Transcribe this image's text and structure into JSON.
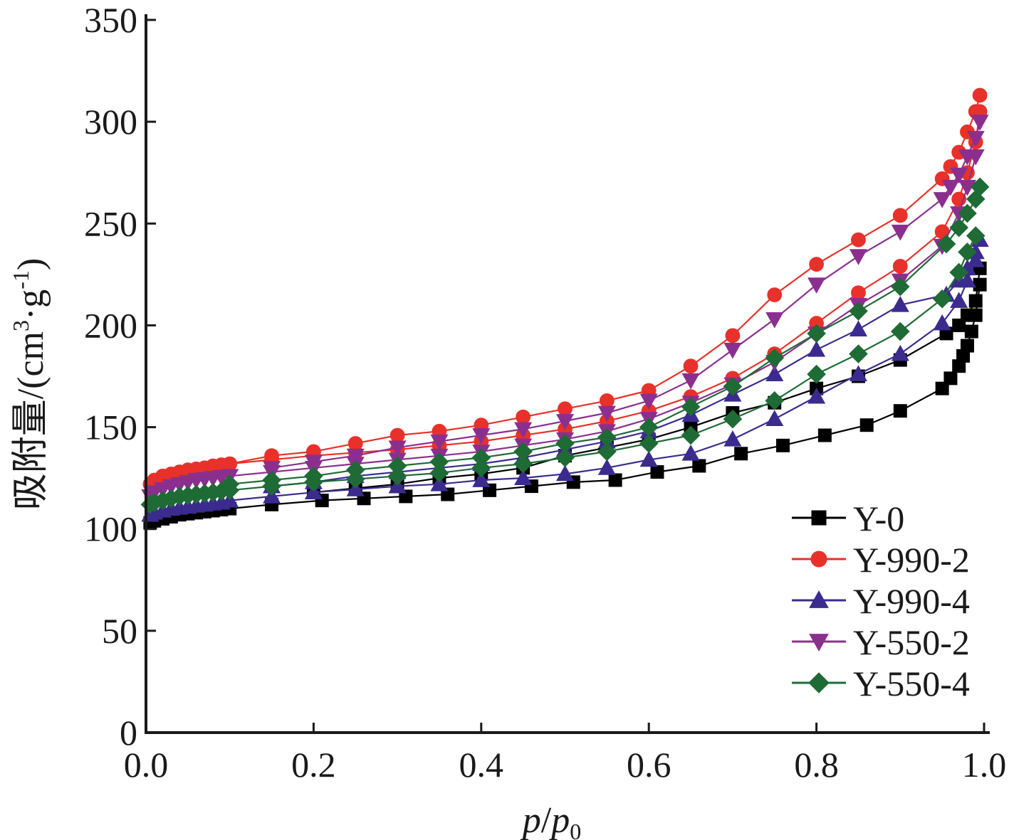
{
  "chart_data": {
    "type": "line",
    "title": "",
    "xlabel": "p/p0",
    "xlabel_parts": {
      "main": "p",
      "slash": "/",
      "sub_base": "p",
      "sub": "0"
    },
    "ylabel": "吸附量/(cm3·g-1)",
    "ylabel_parts": {
      "a": "吸附量/(cm",
      "sup1": "3",
      "b": "·g",
      "sup2": "-1",
      "c": ")"
    },
    "xlim": [
      0.0,
      1.0
    ],
    "ylim": [
      0,
      350
    ],
    "x_ticks": [
      "0.0",
      "0.2",
      "0.4",
      "0.6",
      "0.8",
      "1.0"
    ],
    "y_ticks": [
      "0",
      "50",
      "100",
      "150",
      "200",
      "250",
      "300",
      "350"
    ],
    "grid": false,
    "legend_position": "bottom-right",
    "series": [
      {
        "name": "Y-0",
        "color": "#000000",
        "marker": "square",
        "adsorption": {
          "x": [
            0.005,
            0.01,
            0.02,
            0.03,
            0.04,
            0.05,
            0.06,
            0.07,
            0.08,
            0.09,
            0.1,
            0.15,
            0.21,
            0.26,
            0.31,
            0.36,
            0.41,
            0.46,
            0.51,
            0.56,
            0.61,
            0.66,
            0.71,
            0.76,
            0.81,
            0.86,
            0.9,
            0.95,
            0.96,
            0.97,
            0.975,
            0.98,
            0.985,
            0.99,
            0.995
          ],
          "y": [
            103,
            104,
            105,
            106,
            107,
            107.5,
            108,
            108.5,
            109,
            109.5,
            110,
            112,
            114,
            115,
            116,
            117,
            119,
            121,
            123,
            124,
            128,
            131,
            137,
            141,
            146,
            151,
            158,
            169,
            174,
            180,
            185,
            190,
            197,
            205,
            220
          ]
        },
        "desorption": {
          "x": [
            0.995,
            0.99,
            0.98,
            0.97,
            0.955,
            0.9,
            0.85,
            0.8,
            0.75,
            0.7,
            0.65,
            0.6,
            0.55,
            0.5,
            0.45,
            0.4,
            0.35,
            0.3,
            0.25,
            0.2
          ],
          "y": [
            228,
            212,
            205,
            200,
            196,
            183,
            175,
            169,
            162,
            157,
            150,
            144,
            140,
            136,
            130,
            127,
            125,
            122,
            120,
            118
          ]
        }
      },
      {
        "name": "Y-990-2",
        "color": "#e8312a",
        "marker": "circle",
        "adsorption": {
          "x": [
            0.005,
            0.01,
            0.02,
            0.03,
            0.04,
            0.05,
            0.06,
            0.07,
            0.08,
            0.09,
            0.1,
            0.15,
            0.2,
            0.25,
            0.3,
            0.35,
            0.4,
            0.45,
            0.5,
            0.55,
            0.6,
            0.65,
            0.7,
            0.75,
            0.8,
            0.85,
            0.9,
            0.95,
            0.97,
            0.98,
            0.99,
            0.995
          ],
          "y": [
            122,
            124,
            126,
            127,
            128,
            129,
            129.5,
            130,
            131,
            131.5,
            132,
            134,
            136,
            137.5,
            139,
            141,
            143,
            146,
            149,
            153,
            158,
            165,
            174,
            186,
            201,
            216,
            229,
            246,
            262,
            275,
            290,
            305
          ]
        },
        "desorption": {
          "x": [
            0.995,
            0.99,
            0.98,
            0.97,
            0.96,
            0.95,
            0.9,
            0.85,
            0.8,
            0.75,
            0.7,
            0.65,
            0.6,
            0.55,
            0.5,
            0.45,
            0.4,
            0.35,
            0.3,
            0.25,
            0.2,
            0.15,
            0.1
          ],
          "y": [
            313,
            305,
            295,
            285,
            278,
            272,
            254,
            242,
            230,
            215,
            195,
            180,
            168,
            163,
            159,
            155,
            151,
            148,
            146,
            142,
            138,
            136,
            132
          ]
        }
      },
      {
        "name": "Y-990-4",
        "color": "#3c2b8e",
        "marker": "triangle-up",
        "adsorption": {
          "x": [
            0.005,
            0.01,
            0.02,
            0.03,
            0.04,
            0.05,
            0.06,
            0.07,
            0.08,
            0.09,
            0.1,
            0.15,
            0.2,
            0.25,
            0.3,
            0.35,
            0.4,
            0.45,
            0.5,
            0.55,
            0.6,
            0.65,
            0.7,
            0.75,
            0.8,
            0.85,
            0.9,
            0.95,
            0.97,
            0.98,
            0.99
          ],
          "y": [
            107,
            108,
            109,
            110,
            110.5,
            111,
            111.5,
            112,
            112.5,
            113,
            114,
            116,
            118,
            119.5,
            121,
            122,
            124,
            125,
            127,
            130,
            134,
            137,
            144,
            154,
            165,
            176,
            186,
            201,
            212,
            222,
            232
          ]
        },
        "desorption": {
          "x": [
            0.995,
            0.99,
            0.98,
            0.97,
            0.955,
            0.9,
            0.85,
            0.8,
            0.75,
            0.7,
            0.65,
            0.6,
            0.55,
            0.5,
            0.45,
            0.4,
            0.35,
            0.3,
            0.25,
            0.2,
            0.15
          ],
          "y": [
            242,
            236,
            228,
            222,
            215,
            210,
            198,
            188,
            176,
            166,
            156,
            148,
            143,
            139,
            135,
            132,
            130,
            128,
            126,
            123,
            121
          ]
        }
      },
      {
        "name": "Y-550-2",
        "color": "#8b2f8f",
        "marker": "triangle-down",
        "adsorption": {
          "x": [
            0.005,
            0.01,
            0.02,
            0.03,
            0.04,
            0.05,
            0.06,
            0.07,
            0.08,
            0.09,
            0.1,
            0.15,
            0.2,
            0.25,
            0.3,
            0.35,
            0.4,
            0.45,
            0.5,
            0.55,
            0.6,
            0.65,
            0.7,
            0.75,
            0.8,
            0.85,
            0.9,
            0.95,
            0.97,
            0.98,
            0.99
          ],
          "y": [
            116,
            118,
            119.5,
            121,
            122,
            123,
            124,
            124.5,
            125,
            125.5,
            126,
            128,
            130,
            132,
            134,
            136,
            138,
            141,
            144,
            148,
            154,
            162,
            171,
            182,
            196,
            210,
            222,
            239,
            255,
            268,
            283
          ]
        },
        "desorption": {
          "x": [
            0.995,
            0.99,
            0.98,
            0.97,
            0.96,
            0.95,
            0.9,
            0.85,
            0.8,
            0.75,
            0.7,
            0.65,
            0.6,
            0.55,
            0.5,
            0.45,
            0.4,
            0.35,
            0.3,
            0.25,
            0.2,
            0.15
          ],
          "y": [
            300,
            292,
            283,
            274,
            268,
            262,
            246,
            234,
            220,
            203,
            188,
            173,
            163,
            157,
            153,
            149,
            146,
            143,
            140,
            136,
            133,
            130
          ]
        }
      },
      {
        "name": "Y-550-4",
        "color": "#1f6b35",
        "marker": "diamond",
        "adsorption": {
          "x": [
            0.005,
            0.01,
            0.02,
            0.03,
            0.04,
            0.05,
            0.06,
            0.07,
            0.08,
            0.09,
            0.1,
            0.15,
            0.2,
            0.25,
            0.3,
            0.35,
            0.4,
            0.45,
            0.5,
            0.55,
            0.6,
            0.65,
            0.7,
            0.75,
            0.8,
            0.85,
            0.9,
            0.95,
            0.97,
            0.98,
            0.99
          ],
          "y": [
            112,
            113,
            114,
            115,
            116,
            116.5,
            117,
            117.5,
            118,
            118.5,
            119,
            121,
            123,
            124.5,
            126,
            127.5,
            130,
            132,
            135,
            138,
            142,
            146,
            154,
            163,
            176,
            186,
            197,
            213,
            226,
            236,
            244
          ]
        },
        "desorption": {
          "x": [
            0.995,
            0.99,
            0.98,
            0.97,
            0.955,
            0.9,
            0.85,
            0.8,
            0.75,
            0.7,
            0.65,
            0.6,
            0.55,
            0.5,
            0.45,
            0.4,
            0.35,
            0.3,
            0.25,
            0.2,
            0.15,
            0.1
          ],
          "y": [
            268,
            262,
            255,
            248,
            240,
            219,
            207,
            196,
            184,
            170,
            160,
            150,
            145,
            142,
            138,
            135,
            133,
            131,
            129,
            126,
            124,
            122
          ]
        }
      }
    ]
  }
}
